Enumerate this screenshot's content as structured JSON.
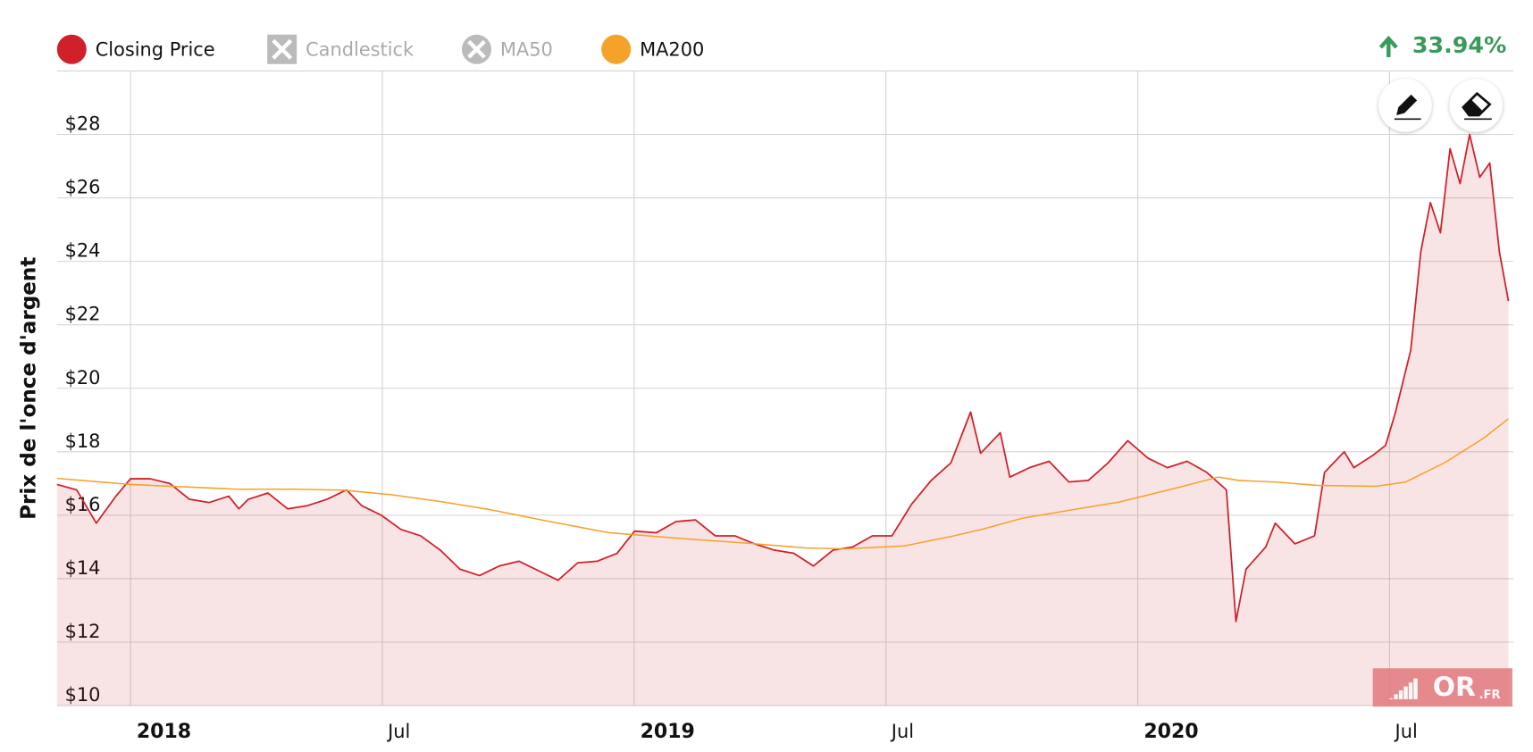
{
  "chart_data": {
    "type": "line",
    "y_label": "Prix de l'once d'argent",
    "change": "33.94%",
    "change_color": "#3a9a5b",
    "logo": "OR",
    "logo_suffix": ".FR",
    "xlim": [
      2017.854,
      2020.736
    ],
    "xticks": [
      {
        "value": 2018,
        "label": "2018"
      },
      {
        "value": 2018.5,
        "label": "Jul"
      },
      {
        "value": 2019,
        "label": "2019"
      },
      {
        "value": 2019.5,
        "label": "Jul"
      },
      {
        "value": 2020,
        "label": "2020"
      },
      {
        "value": 2020.5,
        "label": "Jul"
      }
    ],
    "ylim": [
      10,
      30
    ],
    "yticks": [
      {
        "value": 10,
        "label": "$10"
      },
      {
        "value": 12,
        "label": "$12"
      },
      {
        "value": 14,
        "label": "$14"
      },
      {
        "value": 16,
        "label": "$16"
      },
      {
        "value": 18,
        "label": "$18"
      },
      {
        "value": 20,
        "label": "$20"
      },
      {
        "value": 22,
        "label": "$22"
      },
      {
        "value": 24,
        "label": "$24"
      },
      {
        "value": 26,
        "label": "$26"
      },
      {
        "value": 28,
        "label": "$28"
      }
    ],
    "grid": true,
    "series": [
      {
        "name": "Closing Price",
        "color": "#d0202a",
        "area": true,
        "visible": true,
        "x": [
          2017.854,
          2017.893,
          2017.932,
          2017.971,
          2018.0,
          2018.039,
          2018.078,
          2018.117,
          2018.156,
          2018.195,
          2018.215,
          2018.234,
          2018.273,
          2018.312,
          2018.351,
          2018.39,
          2018.429,
          2018.459,
          2018.498,
          2018.537,
          2018.576,
          2018.615,
          2018.654,
          2018.693,
          2018.732,
          2018.771,
          2018.81,
          2018.849,
          2018.888,
          2018.927,
          2018.966,
          2019.001,
          2019.044,
          2019.083,
          2019.122,
          2019.161,
          2019.2,
          2019.239,
          2019.278,
          2019.317,
          2019.356,
          2019.395,
          2019.434,
          2019.473,
          2019.512,
          2019.551,
          2019.59,
          2019.629,
          2019.668,
          2019.688,
          2019.727,
          2019.746,
          2019.785,
          2019.824,
          2019.863,
          2019.902,
          2019.941,
          2019.98,
          2020.02,
          2020.059,
          2020.098,
          2020.137,
          2020.176,
          2020.195,
          2020.215,
          2020.254,
          2020.273,
          2020.312,
          2020.351,
          2020.371,
          2020.41,
          2020.429,
          2020.468,
          2020.492,
          2020.511,
          2020.542,
          2020.562,
          2020.581,
          2020.601,
          2020.62,
          2020.64,
          2020.659,
          2020.679,
          2020.699,
          2020.718,
          2020.736
        ],
        "values": [
          16.97,
          16.8,
          15.75,
          16.6,
          17.15,
          17.15,
          17.0,
          16.5,
          16.4,
          16.6,
          16.2,
          16.5,
          16.7,
          16.2,
          16.3,
          16.5,
          16.8,
          16.3,
          16.0,
          15.55,
          15.35,
          14.9,
          14.3,
          14.1,
          14.4,
          14.55,
          14.25,
          13.95,
          14.5,
          14.55,
          14.8,
          15.5,
          15.45,
          15.8,
          15.85,
          15.35,
          15.35,
          15.1,
          14.9,
          14.8,
          14.4,
          14.9,
          15.0,
          15.35,
          15.35,
          16.35,
          17.1,
          17.65,
          19.25,
          17.95,
          18.6,
          17.2,
          17.5,
          17.7,
          17.05,
          17.1,
          17.65,
          18.35,
          17.8,
          17.5,
          17.7,
          17.35,
          16.8,
          12.65,
          14.3,
          15.0,
          15.75,
          15.1,
          15.35,
          17.35,
          18.0,
          17.5,
          17.9,
          18.2,
          19.2,
          21.2,
          24.3,
          25.85,
          24.9,
          27.55,
          26.45,
          28.0,
          26.65,
          27.1,
          24.3,
          22.75
        ]
      },
      {
        "name": "Candlestick",
        "color": "#bbbbbb",
        "visible": false,
        "icon": "cross-square"
      },
      {
        "name": "MA50",
        "color": "#bbbbbb",
        "visible": false,
        "icon": "cross-circle"
      },
      {
        "name": "MA200",
        "color": "#f5a22a",
        "area": false,
        "visible": true,
        "x": [
          2017.854,
          2018.0,
          2018.209,
          2018.326,
          2018.423,
          2018.521,
          2018.619,
          2018.716,
          2018.833,
          2018.95,
          2019.106,
          2019.223,
          2019.34,
          2019.419,
          2019.536,
          2019.633,
          2019.692,
          2019.77,
          2019.848,
          2019.965,
          2020.082,
          2020.16,
          2020.199,
          2020.277,
          2020.355,
          2020.472,
          2020.531,
          2020.609,
          2020.687,
          2020.736
        ],
        "values": [
          17.16,
          16.97,
          16.82,
          16.82,
          16.79,
          16.64,
          16.42,
          16.17,
          15.8,
          15.45,
          15.25,
          15.12,
          14.97,
          14.94,
          15.03,
          15.34,
          15.56,
          15.9,
          16.11,
          16.42,
          16.88,
          17.2,
          17.1,
          17.04,
          16.94,
          16.91,
          17.04,
          17.65,
          18.43,
          19.04
        ]
      }
    ]
  }
}
